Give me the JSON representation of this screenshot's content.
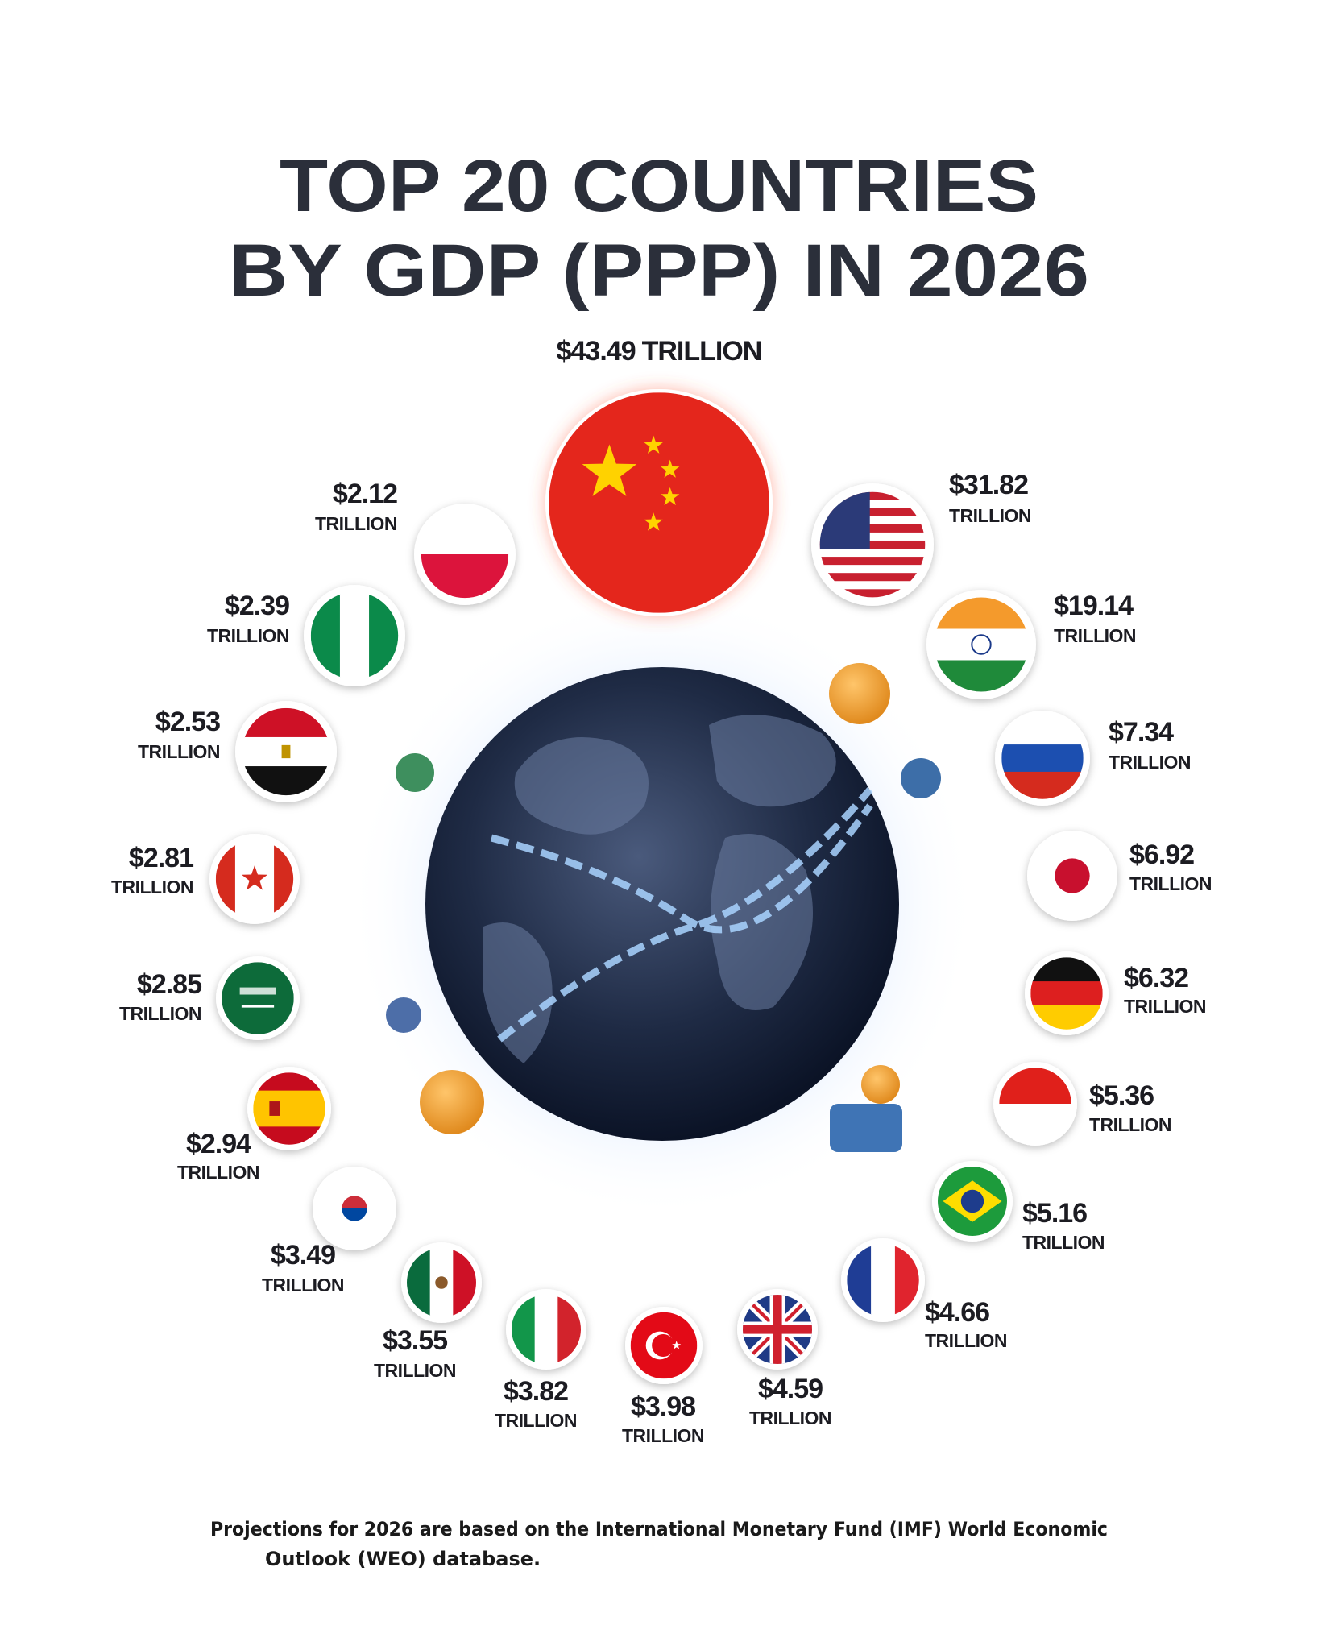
{
  "title": {
    "lines": [
      "TOP 20 COUNTRIES",
      "BY GDP (PPP) IN 2026"
    ]
  },
  "items": [
    {
      "amount": "$43.49",
      "unit": "TRILLION"
    },
    {
      "amount": "$31.82",
      "unit": "TRILLION"
    },
    {
      "amount": "$19.14",
      "unit": "TRILLION"
    },
    {
      "amount": "$7.34",
      "unit": "TRILLION"
    },
    {
      "amount": "$6.92",
      "unit": "TRILLION"
    },
    {
      "amount": "$6.32",
      "unit": "TRILLION"
    },
    {
      "amount": "$5.36",
      "unit": "TRILLION"
    },
    {
      "amount": "$5.16",
      "unit": "TRILLION"
    },
    {
      "amount": "$4.66",
      "unit": "TRILLION"
    },
    {
      "amount": "$4.59",
      "unit": "TRILLION"
    },
    {
      "amount": "$3.98",
      "unit": "TRILLION"
    },
    {
      "amount": "$3.82",
      "unit": "TRILLION"
    },
    {
      "amount": "$3.55",
      "unit": "TRILLION"
    },
    {
      "amount": "$3.49",
      "unit": "TRILLION"
    },
    {
      "amount": "$2.94",
      "unit": "TRILLION"
    },
    {
      "amount": "$2.85",
      "unit": "TRILLION"
    },
    {
      "amount": "$2.81",
      "unit": "TRILLION"
    },
    {
      "amount": "$2.53",
      "unit": "TRILLION"
    },
    {
      "amount": "$2.39",
      "unit": "TRILLION"
    },
    {
      "amount": "$2.12",
      "unit": "TRILLION"
    }
  ],
  "footnote": {
    "lines": [
      "Projections for 2026 are based on the International Monetary Fund (IMF) World Economic",
      "Outlook (WEO) database."
    ]
  }
}
